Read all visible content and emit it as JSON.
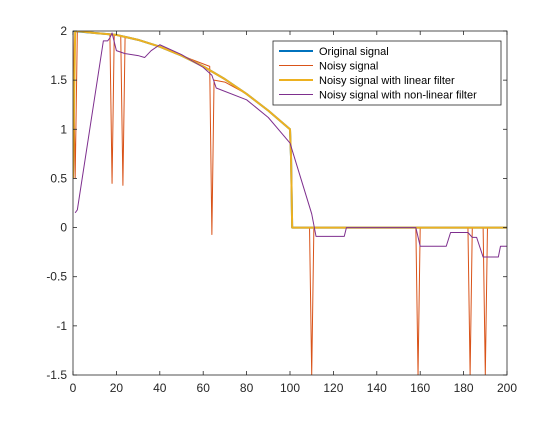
{
  "chart_data": {
    "type": "line",
    "title": "",
    "xlabel": "",
    "ylabel": "",
    "xlim": [
      0,
      200
    ],
    "ylim": [
      -1.5,
      2
    ],
    "xticks": [
      0,
      20,
      40,
      60,
      80,
      100,
      120,
      140,
      160,
      180,
      200
    ],
    "yticks": [
      -1.5,
      -1,
      -0.5,
      0,
      0.5,
      1,
      1.5,
      2
    ],
    "ytick_labels": [
      "-1.5",
      "-1",
      "-0.5",
      "0",
      "0.5",
      "1",
      "1.5",
      "2"
    ],
    "grid": false,
    "legend_position": "top-right",
    "series": [
      {
        "name": "Original signal",
        "color": "#0072BD",
        "line_width": 2,
        "x": [
          0,
          10,
          20,
          30,
          40,
          50,
          60,
          70,
          80,
          90,
          100,
          100.5,
          101,
          200
        ],
        "values": [
          2.0,
          1.98,
          1.96,
          1.91,
          1.84,
          1.75,
          1.64,
          1.51,
          1.36,
          1.19,
          1.0,
          0.7,
          0,
          0
        ]
      },
      {
        "name": "Noisy signal",
        "color": "#D95319",
        "line_width": 1,
        "x": [
          0,
          1,
          2,
          3,
          10,
          17,
          18,
          19,
          22,
          23,
          24,
          30,
          40,
          50,
          63,
          64,
          65,
          70,
          80,
          90,
          100,
          100.5,
          101,
          109,
          110,
          111,
          158,
          159,
          160,
          161,
          182,
          183,
          184,
          189,
          190,
          191,
          200
        ],
        "values": [
          2.0,
          0.5,
          2.0,
          2.0,
          1.98,
          1.97,
          0.45,
          1.96,
          1.95,
          0.43,
          1.94,
          1.91,
          1.84,
          1.75,
          1.64,
          -0.07,
          1.5,
          1.48,
          1.36,
          1.19,
          1.0,
          0.7,
          0,
          0,
          -1.5,
          0,
          0,
          -1.5,
          0,
          0,
          0,
          -1.5,
          0,
          0,
          -1.5,
          0,
          0
        ]
      },
      {
        "name": "Noisy signal with linear filter",
        "color": "#EDB120",
        "line_width": 2,
        "x": [
          0,
          1,
          2,
          10,
          20,
          30,
          40,
          50,
          60,
          70,
          80,
          90,
          100,
          100.5,
          101,
          200
        ],
        "values": [
          0.5,
          2.0,
          2.0,
          1.98,
          1.96,
          1.91,
          1.84,
          1.75,
          1.64,
          1.51,
          1.36,
          1.19,
          1.0,
          0.7,
          0,
          0
        ]
      },
      {
        "name": "Noisy signal with non-linear filter",
        "color": "#7E2F8E",
        "line_width": 1,
        "x": [
          1,
          2,
          14,
          16,
          17,
          18,
          20,
          24,
          30,
          33,
          36,
          40,
          50,
          60,
          64,
          66,
          80,
          90,
          100,
          105,
          110,
          112,
          125,
          126,
          158,
          160,
          172,
          174,
          182,
          184,
          186,
          189,
          196,
          197,
          200
        ],
        "values": [
          0.15,
          0.18,
          1.9,
          1.9,
          1.93,
          1.98,
          1.8,
          1.77,
          1.75,
          1.73,
          1.8,
          1.86,
          1.76,
          1.63,
          1.55,
          1.42,
          1.3,
          1.12,
          0.86,
          0.5,
          0.14,
          -0.09,
          -0.09,
          0,
          0,
          -0.19,
          -0.19,
          -0.05,
          -0.05,
          -0.1,
          -0.1,
          -0.3,
          -0.3,
          -0.19,
          -0.19
        ]
      }
    ]
  }
}
